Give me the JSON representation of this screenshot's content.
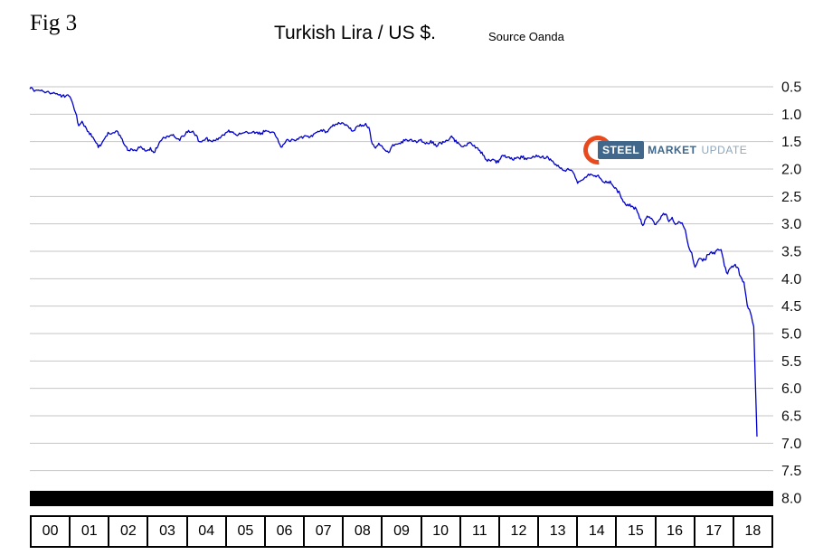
{
  "figure": {
    "fig_label": "Fig 3",
    "title": "Turkish Lira / US $.",
    "source": "Source Oanda"
  },
  "logo": {
    "steel": "STEEL",
    "market": "MARKET",
    "update": "UPDATE",
    "swoosh_color": "#e8491d",
    "steel_bg": "#41688a",
    "update_color": "#8fa6b8"
  },
  "chart_data": {
    "type": "line",
    "title": "Turkish Lira / US $.",
    "series_name": "Turkish Lira per US Dollar",
    "line_color": "#0000cd",
    "grid_color": "#c6c6c6",
    "x_axis_bar_color": "#000000",
    "y_axis_side": "right",
    "y_axis_inverted": true,
    "ylim": [
      0.5,
      8.0
    ],
    "y_ticks": [
      0.5,
      1.0,
      1.5,
      2.0,
      2.5,
      3.0,
      3.5,
      4.0,
      4.5,
      5.0,
      5.5,
      6.0,
      6.5,
      7.0,
      7.5,
      8.0
    ],
    "x_tick_labels": [
      "00",
      "01",
      "02",
      "03",
      "04",
      "05",
      "06",
      "07",
      "08",
      "09",
      "10",
      "11",
      "12",
      "13",
      "14",
      "15",
      "16",
      "17",
      "18"
    ],
    "frequency": "monthly",
    "start": "2000-01",
    "values": [
      0.54,
      0.55,
      0.56,
      0.57,
      0.58,
      0.6,
      0.61,
      0.62,
      0.63,
      0.65,
      0.66,
      0.67,
      0.67,
      0.78,
      0.97,
      1.21,
      1.13,
      1.22,
      1.32,
      1.41,
      1.49,
      1.61,
      1.54,
      1.44,
      1.33,
      1.36,
      1.34,
      1.32,
      1.43,
      1.56,
      1.66,
      1.63,
      1.65,
      1.64,
      1.59,
      1.63,
      1.66,
      1.61,
      1.7,
      1.62,
      1.49,
      1.42,
      1.4,
      1.39,
      1.37,
      1.45,
      1.48,
      1.4,
      1.32,
      1.33,
      1.31,
      1.38,
      1.5,
      1.48,
      1.44,
      1.47,
      1.5,
      1.48,
      1.43,
      1.38,
      1.34,
      1.29,
      1.33,
      1.36,
      1.37,
      1.35,
      1.33,
      1.35,
      1.34,
      1.35,
      1.36,
      1.34,
      1.32,
      1.31,
      1.33,
      1.34,
      1.45,
      1.6,
      1.54,
      1.46,
      1.49,
      1.47,
      1.45,
      1.42,
      1.41,
      1.4,
      1.41,
      1.36,
      1.33,
      1.31,
      1.28,
      1.32,
      1.26,
      1.19,
      1.18,
      1.17,
      1.16,
      1.19,
      1.26,
      1.31,
      1.24,
      1.22,
      1.2,
      1.17,
      1.24,
      1.54,
      1.62,
      1.53,
      1.58,
      1.66,
      1.7,
      1.59,
      1.55,
      1.54,
      1.5,
      1.48,
      1.49,
      1.46,
      1.48,
      1.5,
      1.46,
      1.52,
      1.53,
      1.48,
      1.56,
      1.58,
      1.52,
      1.51,
      1.48,
      1.42,
      1.44,
      1.53,
      1.56,
      1.59,
      1.57,
      1.51,
      1.58,
      1.61,
      1.66,
      1.75,
      1.83,
      1.84,
      1.82,
      1.89,
      1.83,
      1.75,
      1.79,
      1.78,
      1.83,
      1.81,
      1.8,
      1.79,
      1.8,
      1.8,
      1.79,
      1.78,
      1.76,
      1.78,
      1.81,
      1.79,
      1.85,
      1.92,
      1.93,
      1.98,
      2.03,
      1.99,
      2.02,
      2.1,
      2.26,
      2.21,
      2.17,
      2.12,
      2.09,
      2.13,
      2.12,
      2.17,
      2.24,
      2.25,
      2.22,
      2.32,
      2.37,
      2.46,
      2.6,
      2.67,
      2.64,
      2.69,
      2.73,
      2.9,
      3.03,
      2.9,
      2.87,
      2.93,
      3.01,
      2.93,
      2.84,
      2.82,
      2.96,
      2.88,
      3.01,
      2.96,
      2.98,
      3.11,
      3.41,
      3.53,
      3.79,
      3.66,
      3.64,
      3.66,
      3.56,
      3.51,
      3.55,
      3.46,
      3.47,
      3.76,
      3.91,
      3.8,
      3.76,
      3.79,
      3.96,
      4.06,
      4.48,
      4.62,
      4.87,
      6.88
    ]
  }
}
